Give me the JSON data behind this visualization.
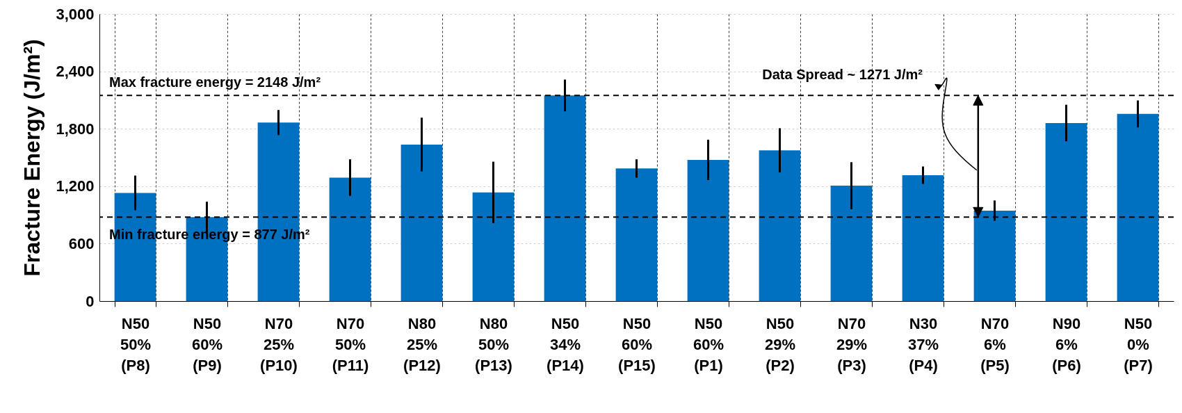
{
  "chart_data": {
    "type": "bar",
    "ylabel": "Fracture Energy (J/m²)",
    "categories": [
      "N50 50% (P8)",
      "N50 60% (P9)",
      "N70 25% (P10)",
      "N70 50% (P11)",
      "N80 25% (P12)",
      "N80 50% (P13)",
      "N50 34% (P14)",
      "N50 60% (P15)",
      "N50 60% (P1)",
      "N50 29% (P2)",
      "N70 29% (P3)",
      "N30 37% (P4)",
      "N70 6% (P5)",
      "N90 6% (P6)",
      "N50 0% (P7)"
    ],
    "values": [
      1130,
      877,
      1865,
      1290,
      1635,
      1135,
      2148,
      1385,
      1475,
      1575,
      1205,
      1315,
      945,
      1860,
      1955
    ],
    "errors": [
      170,
      150,
      120,
      180,
      270,
      310,
      155,
      85,
      200,
      220,
      235,
      80,
      95,
      180,
      130
    ],
    "color": "#0070c0",
    "ylim": [
      0,
      3000
    ],
    "yticks": [
      {
        "value": 0,
        "label": "0"
      },
      {
        "value": 600,
        "label": "600"
      },
      {
        "value": 1200,
        "label": "1,200"
      },
      {
        "value": 1800,
        "label": "1,800"
      },
      {
        "value": 2400,
        "label": "2,400"
      },
      {
        "value": 3000,
        "label": "3,000"
      }
    ],
    "grid": true,
    "ref_lines": [
      {
        "axis": "y",
        "value": 2148,
        "label": "Max fracture energy = 2148 J/m²",
        "line_style": "dashed",
        "color": "#000000"
      },
      {
        "axis": "y",
        "value": 877,
        "label": "Min fracture energy = 877 J/m²",
        "line_style": "dashed",
        "color": "#000000"
      }
    ],
    "annotations": [
      "Data Spread ~ 1271 J/m²"
    ]
  }
}
